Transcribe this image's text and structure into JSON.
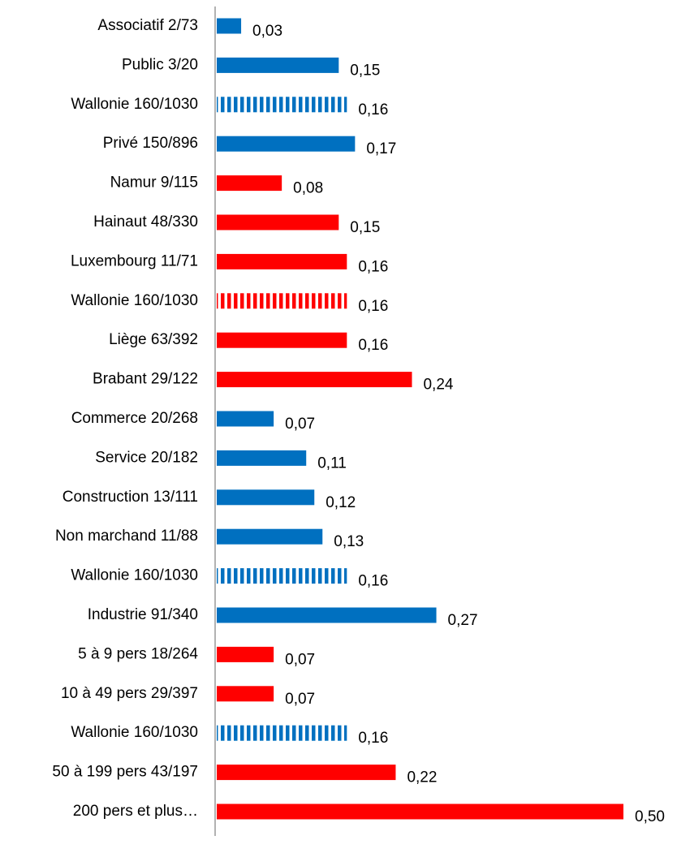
{
  "chart_data": {
    "type": "bar",
    "orientation": "horizontal",
    "categories": [
      "Associatif 2/73",
      "Public 3/20",
      "Wallonie 160/1030",
      "Privé 150/896",
      "Namur 9/115",
      "Hainaut 48/330",
      "Luxembourg 11/71",
      "Wallonie 160/1030",
      "Liège 63/392",
      "Brabant 29/122",
      "Commerce 20/268",
      "Service 20/182",
      "Construction 13/111",
      "Non marchand 11/88",
      "Wallonie 160/1030",
      "Industrie 91/340",
      "5 à 9 pers 18/264",
      "10 à 49 pers 29/397",
      "Wallonie 160/1030",
      "50 à 199 pers 43/197",
      "200 pers et plus…"
    ],
    "values": [
      0.03,
      0.15,
      0.16,
      0.17,
      0.08,
      0.15,
      0.16,
      0.16,
      0.16,
      0.24,
      0.07,
      0.11,
      0.12,
      0.13,
      0.16,
      0.27,
      0.07,
      0.07,
      0.16,
      0.22,
      0.5
    ],
    "value_labels": [
      "0,03",
      "0,15",
      "0,16",
      "0,17",
      "0,08",
      "0,15",
      "0,16",
      "0,16",
      "0,16",
      "0,24",
      "0,07",
      "0,11",
      "0,12",
      "0,13",
      "0,16",
      "0,27",
      "0,07",
      "0,07",
      "0,16",
      "0,22",
      "0,50"
    ],
    "colors": [
      "#0070c0",
      "#0070c0",
      "#0070c0",
      "#0070c0",
      "#ff0000",
      "#ff0000",
      "#ff0000",
      "#ff0000",
      "#ff0000",
      "#ff0000",
      "#0070c0",
      "#0070c0",
      "#0070c0",
      "#0070c0",
      "#0070c0",
      "#0070c0",
      "#ff0000",
      "#ff0000",
      "#0070c0",
      "#ff0000",
      "#ff0000"
    ],
    "striped": [
      false,
      false,
      true,
      false,
      false,
      false,
      false,
      true,
      false,
      false,
      false,
      false,
      false,
      false,
      true,
      false,
      false,
      false,
      true,
      false,
      false
    ],
    "xlim": [
      0,
      0.5
    ]
  }
}
